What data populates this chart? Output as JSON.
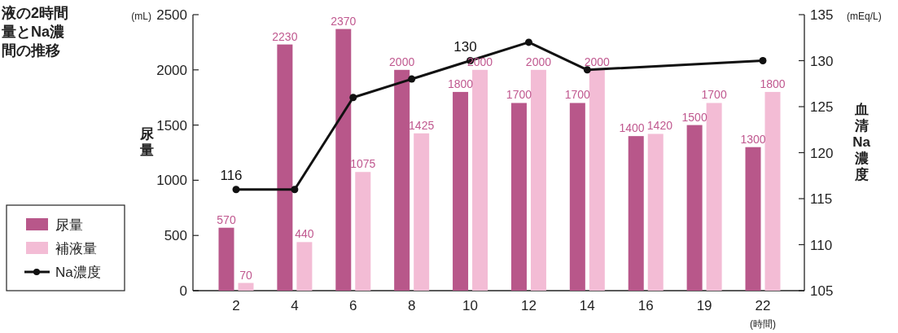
{
  "chart_data": {
    "type": "bar",
    "title": "液の2時間量とNa濃間の推移",
    "xlabel": "(時間)",
    "ylabel": "尿量",
    "y2label": "血清Na濃度",
    "annotations": [
      "(mL)",
      "(mEq/L)"
    ],
    "categories": [
      "2",
      "4",
      "6",
      "8",
      "10",
      "12",
      "14",
      "16",
      "19",
      "22"
    ],
    "series": [
      {
        "name": "尿量",
        "color": "#b8578a",
        "values": [
          570,
          2230,
          2370,
          2000,
          1800,
          1700,
          1700,
          1400,
          1500,
          1300
        ],
        "value_labels": [
          "570",
          "2230",
          "2370",
          "2000",
          "1800",
          "1700",
          "1700",
          "1400",
          "1500",
          "1300"
        ]
      },
      {
        "name": "補液量",
        "color": "#f3bcd5",
        "values": [
          70,
          440,
          1075,
          1425,
          2000,
          2000,
          2000,
          1420,
          1700,
          1800
        ],
        "value_labels": [
          "70",
          "440",
          "1075",
          "1425",
          "2000",
          "2000",
          "2000",
          "1420",
          "1700",
          "1800"
        ]
      },
      {
        "name": "Na濃度",
        "type": "line",
        "axis": "y2",
        "color": "#111111",
        "x": [
          "2",
          "4",
          "6",
          "8",
          "10",
          "12",
          "14",
          "22"
        ],
        "values": [
          116,
          116,
          126,
          128,
          130,
          132,
          129,
          130
        ],
        "value_labels": [
          "116",
          null,
          null,
          null,
          "130",
          null,
          null,
          null
        ]
      }
    ],
    "ylim": [
      0,
      2500
    ],
    "yticks": [
      0,
      500,
      1000,
      1500,
      2000,
      2500
    ],
    "y2lim": [
      105,
      135
    ],
    "y2ticks": [
      105,
      110,
      115,
      120,
      125,
      130,
      135
    ],
    "legend": "left",
    "marker": "circle"
  }
}
